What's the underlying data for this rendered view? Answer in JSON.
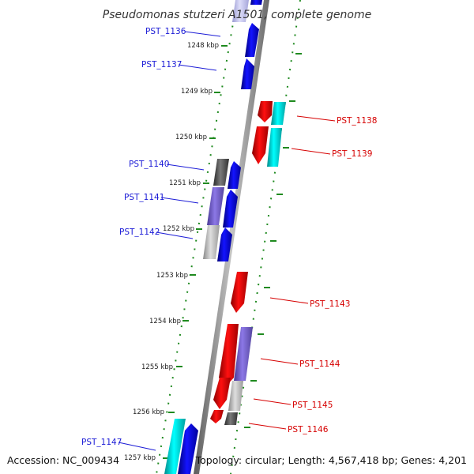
{
  "title": "Pseudomonas stutzeri A1501, complete genome",
  "accession": "Accession: NC_009434",
  "topology": "Topology: circular; Length: 4,567,418 bp; Genes: 4,201",
  "colors": {
    "forward_gene": "#1010f0",
    "reverse_gene": "#ee0000",
    "cyan_feature": "#00d6d6",
    "lavender_feature": "#7866c8",
    "gray_feature": "#b4b4b4",
    "dark_feature": "#555555",
    "pale_feature": "#c6c6ee",
    "tick": "#1f8a1f",
    "axis": "#8a8a8a",
    "blue_label": "#1b1bd6",
    "red_label": "#d60000"
  },
  "kbp_ticks": [
    "1248 kbp",
    "1249 kbp",
    "1250 kbp",
    "1251 kbp",
    "1252 kbp",
    "1253 kbp",
    "1254 kbp",
    "1255 kbp",
    "1256 kbp",
    "1257 kbp"
  ],
  "gene_labels_forward": [
    "PST_1136",
    "PST_1137",
    "PST_1140",
    "PST_1141",
    "PST_1142",
    "PST_1147"
  ],
  "gene_labels_reverse": [
    "PST_1138",
    "PST_1139",
    "PST_1143",
    "PST_1144",
    "PST_1145",
    "PST_1146"
  ]
}
